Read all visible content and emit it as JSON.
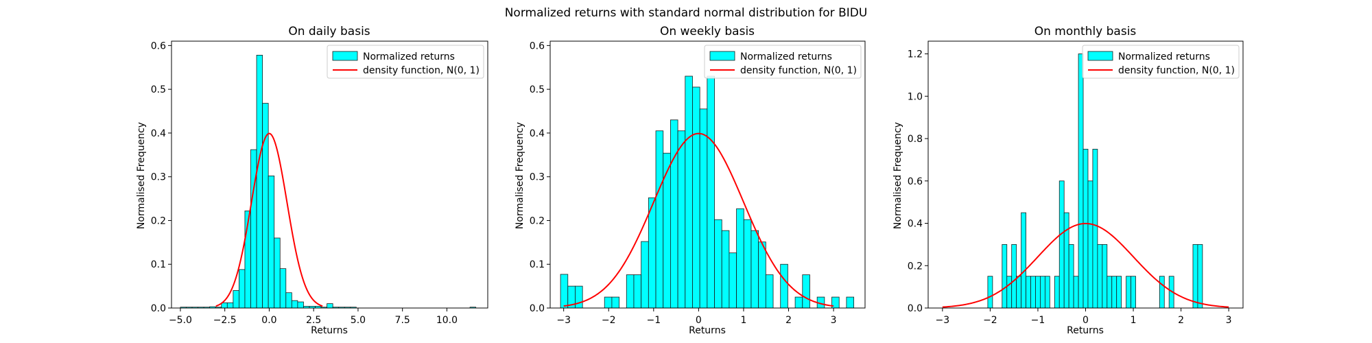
{
  "figure": {
    "suptitle": "Normalized returns with standard normal distribution for BIDU"
  },
  "colors": {
    "bar_fill": "#00ffff",
    "bar_edge": "#1a1a1a",
    "density_line": "#ff0000"
  },
  "chart_data": [
    {
      "type": "bar",
      "title": "On daily basis",
      "xlabel": "Returns",
      "ylabel": "Normalised Frequency",
      "xlim": [
        -5.5,
        12.3
      ],
      "ylim": [
        0,
        0.61
      ],
      "xticks": [
        -5.0,
        -2.5,
        0.0,
        2.5,
        5.0,
        7.5,
        10.0
      ],
      "xtick_labels": [
        "−5.0",
        "−2.5",
        "0.0",
        "2.5",
        "5.0",
        "7.5",
        "10.0"
      ],
      "yticks": [
        0.0,
        0.1,
        0.2,
        0.3,
        0.4,
        0.5,
        0.6
      ],
      "ytick_labels": [
        "0.0",
        "0.1",
        "0.2",
        "0.3",
        "0.4",
        "0.5",
        "0.6"
      ],
      "legend": [
        "Normalized returns",
        "density function, N(0, 1)"
      ],
      "legend_position": "top-right",
      "bin_width": 0.33,
      "bin_lefts": [
        -5.0,
        -4.67,
        -4.34,
        -4.01,
        -3.68,
        -3.35,
        -3.02,
        -2.69,
        -2.36,
        -2.03,
        -1.7,
        -1.37,
        -1.04,
        -0.71,
        -0.38,
        -0.05,
        0.28,
        0.61,
        0.94,
        1.27,
        1.6,
        1.93,
        2.26,
        2.59,
        2.92,
        3.25,
        3.58,
        3.91,
        4.24,
        4.57,
        11.3
      ],
      "values": [
        0.002,
        0.002,
        0.002,
        0.002,
        0.002,
        0.003,
        0.002,
        0.012,
        0.012,
        0.04,
        0.088,
        0.222,
        0.362,
        0.578,
        0.468,
        0.302,
        0.16,
        0.09,
        0.035,
        0.017,
        0.014,
        0.004,
        0.004,
        0.004,
        0.002,
        0.01,
        0.002,
        0.002,
        0.002,
        0.002,
        0.002
      ],
      "density_x_range": [
        -3,
        3
      ]
    },
    {
      "type": "bar",
      "title": "On weekly basis",
      "xlabel": "Returns",
      "ylabel": "Normalised Frequency",
      "xlim": [
        -3.3,
        3.7
      ],
      "ylim": [
        0,
        0.61
      ],
      "xticks": [
        -3,
        -2,
        -1,
        0,
        1,
        2,
        3
      ],
      "xtick_labels": [
        "−3",
        "−2",
        "−1",
        "0",
        "1",
        "2",
        "3"
      ],
      "yticks": [
        0.0,
        0.1,
        0.2,
        0.3,
        0.4,
        0.5,
        0.6
      ],
      "ytick_labels": [
        "0.0",
        "0.1",
        "0.2",
        "0.3",
        "0.4",
        "0.5",
        "0.6"
      ],
      "legend": [
        "Normalized returns",
        "density function, N(0, 1)"
      ],
      "legend_position": "top-right",
      "bin_width": 0.163,
      "bin_lefts": [
        -3.07,
        -2.907,
        -2.744,
        -2.092,
        -1.929,
        -1.603,
        -1.44,
        -1.277,
        -1.114,
        -0.951,
        -0.788,
        -0.625,
        -0.462,
        -0.299,
        -0.136,
        0.027,
        0.19,
        0.353,
        0.516,
        0.679,
        0.842,
        1.005,
        1.168,
        1.331,
        1.494,
        1.82,
        2.146,
        2.309,
        2.635,
        2.961,
        3.287
      ],
      "values": [
        0.077,
        0.05,
        0.05,
        0.025,
        0.025,
        0.076,
        0.076,
        0.152,
        0.252,
        0.405,
        0.354,
        0.43,
        0.405,
        0.53,
        0.505,
        0.455,
        0.53,
        0.202,
        0.177,
        0.126,
        0.227,
        0.202,
        0.177,
        0.151,
        0.076,
        0.1,
        0.025,
        0.076,
        0.025,
        0.025,
        0.025
      ],
      "density_x_range": [
        -3,
        3
      ]
    },
    {
      "type": "bar",
      "title": "On monthly basis",
      "xlabel": "Returns",
      "ylabel": "Normalised Frequency",
      "xlim": [
        -3.3,
        3.3
      ],
      "ylim": [
        0,
        1.26
      ],
      "xticks": [
        -3,
        -2,
        -1,
        0,
        1,
        2,
        3
      ],
      "xtick_labels": [
        "−3",
        "−2",
        "−1",
        "0",
        "1",
        "2",
        "3"
      ],
      "yticks": [
        0.0,
        0.2,
        0.4,
        0.6,
        0.8,
        1.0,
        1.2
      ],
      "ytick_labels": [
        "0.0",
        "0.2",
        "0.4",
        "0.6",
        "0.8",
        "1.0",
        "1.2"
      ],
      "legend": [
        "Normalized returns",
        "density function, N(0, 1)"
      ],
      "legend_position": "top-right",
      "bin_width": 0.1,
      "bin_lefts": [
        -2.05,
        -1.75,
        -1.65,
        -1.55,
        -1.45,
        -1.35,
        -1.25,
        -1.15,
        -1.05,
        -0.95,
        -0.85,
        -0.65,
        -0.55,
        -0.45,
        -0.35,
        -0.25,
        -0.15,
        -0.05,
        0.05,
        0.15,
        0.25,
        0.35,
        0.45,
        0.55,
        0.65,
        0.85,
        0.95,
        1.55,
        1.75,
        2.25,
        2.35
      ],
      "values": [
        0.15,
        0.3,
        0.15,
        0.3,
        0.15,
        0.45,
        0.15,
        0.15,
        0.15,
        0.15,
        0.15,
        0.15,
        0.6,
        0.45,
        0.3,
        0.15,
        1.2,
        0.75,
        0.6,
        0.75,
        0.3,
        0.3,
        0.15,
        0.15,
        0.15,
        0.15,
        0.15,
        0.15,
        0.15,
        0.3,
        0.3
      ],
      "density_x_range": [
        -3,
        3
      ]
    }
  ]
}
